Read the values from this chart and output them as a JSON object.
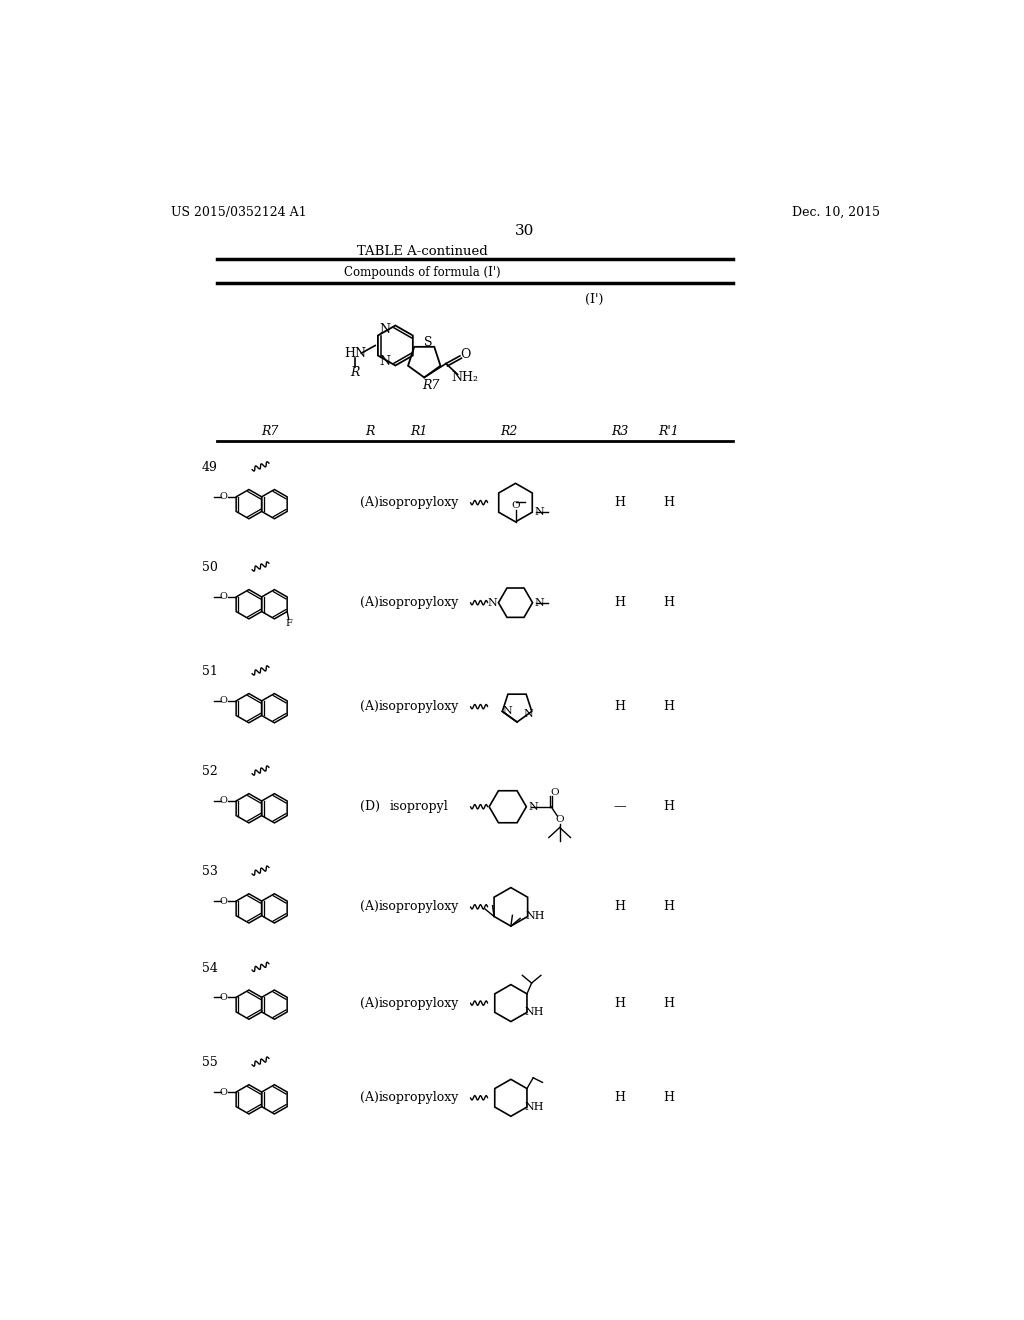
{
  "page_number": "30",
  "patent_number": "US 2015/0352124 A1",
  "patent_date": "Dec. 10, 2015",
  "table_title": "TABLE A-continued",
  "table_subtitle": "Compounds of formula (I')",
  "formula_label": "(I')",
  "background_color": "#ffffff",
  "text_color": "#000000",
  "header_cols": [
    "R7",
    "R",
    "R1",
    "R2",
    "R3",
    "R'1"
  ],
  "row_data": [
    {
      "num": "49",
      "rcol": "(A)",
      "r1col": "isopropyloxy",
      "r3": "H",
      "r1p": "H",
      "ridx": 0
    },
    {
      "num": "50",
      "rcol": "(A)",
      "r1col": "isopropyloxy",
      "r3": "H",
      "r1p": "H",
      "ridx": 1
    },
    {
      "num": "51",
      "rcol": "(A)",
      "r1col": "isopropyloxy",
      "r3": "H",
      "r1p": "H",
      "ridx": 2
    },
    {
      "num": "52",
      "rcol": "(D)",
      "r1col": "isopropyl",
      "r3": "—",
      "r1p": "H",
      "ridx": 3
    },
    {
      "num": "53",
      "rcol": "(A)",
      "r1col": "isopropyloxy",
      "r3": "H",
      "r1p": "H",
      "ridx": 4
    },
    {
      "num": "54",
      "rcol": "(A)",
      "r1col": "isopropyloxy",
      "r3": "H",
      "r1p": "H",
      "ridx": 5
    },
    {
      "num": "55",
      "rcol": "(A)",
      "r1col": "isopropyloxy",
      "r3": "H",
      "r1p": "H",
      "ridx": 6
    }
  ],
  "row_tops": [
    385,
    515,
    650,
    780,
    910,
    1035,
    1158
  ]
}
